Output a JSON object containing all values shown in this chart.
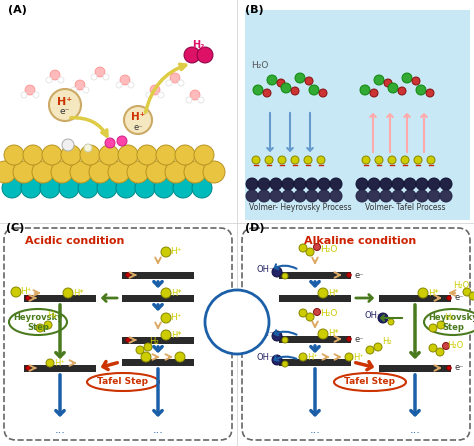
{
  "bg_color": "#ffffff",
  "panel_B_bg": "#c8e8f5",
  "electrode_color": "#2a2a2a",
  "arrow_blue": "#1a5fa8",
  "arrow_green": "#4a7a1e",
  "arrow_red": "#cc3300",
  "text_red": "#cc2200",
  "text_green": "#4a7a1e",
  "volmer_circle_color": "#1a5fa8",
  "H_atom_fc": "#cccc00",
  "H_atom_ec": "#888800",
  "dark_atom_fc": "#222266",
  "dark_atom_ec": "#111144",
  "electron_fc": "#cc0000",
  "hollow_arrow_color": "#ddaa66",
  "label_acidic": "Acidic condition",
  "label_alkaline": "Alkaline condition",
  "label_volmer_hey_B": "Volmer- Heyrovsky Process",
  "label_volmer_tafel_B": "Volmer- Tafel Process"
}
